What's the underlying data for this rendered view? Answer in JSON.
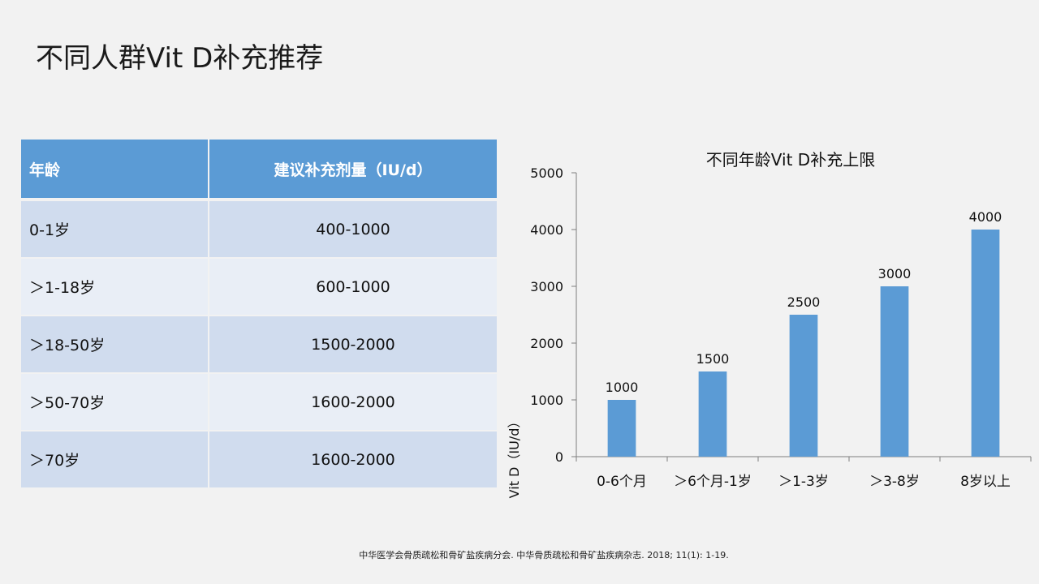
{
  "slide": {
    "title": "不同人群Vit D补充推荐"
  },
  "table": {
    "headers": {
      "age": "年龄",
      "dose": "建议补充剂量（IU/d）"
    },
    "rows": [
      {
        "age": "0-1岁",
        "dose": "400-1000"
      },
      {
        "age": "＞1-18岁",
        "dose": "600-1000"
      },
      {
        "age": "＞18-50岁",
        "dose": "1500-2000"
      },
      {
        "age": "＞50-70岁",
        "dose": "1600-2000"
      },
      {
        "age": "＞70岁",
        "dose": "1600-2000"
      }
    ],
    "colors": {
      "header": "#5b9bd5",
      "row_odd": "#d0dcee",
      "row_even": "#e9eef6"
    }
  },
  "chart_data": {
    "type": "bar",
    "title": "不同年龄Vit D补充上限",
    "ylabel": "Vit D（IU/d）",
    "xlabel": "",
    "categories": [
      "0-6个月",
      "＞6个月-1岁",
      "＞1-3岁",
      "＞3-8岁",
      "8岁以上"
    ],
    "values": [
      1000,
      1500,
      2500,
      3000,
      4000
    ],
    "data_labels": [
      "1000",
      "1500",
      "2500",
      "3000",
      "4000"
    ],
    "ylim": [
      0,
      5000
    ],
    "yticks": [
      0,
      1000,
      2000,
      3000,
      4000,
      5000
    ],
    "ytick_labels": [
      "0",
      "1000",
      "2000",
      "3000",
      "4000",
      "5000"
    ],
    "grid": false,
    "legend": "none",
    "bar_color": "#5b9bd5"
  },
  "citation": "中华医学会骨质疏松和骨矿盐疾病分会. 中华骨质疏松和骨矿盐疾病杂志. 2018; 11(1): 1-19."
}
